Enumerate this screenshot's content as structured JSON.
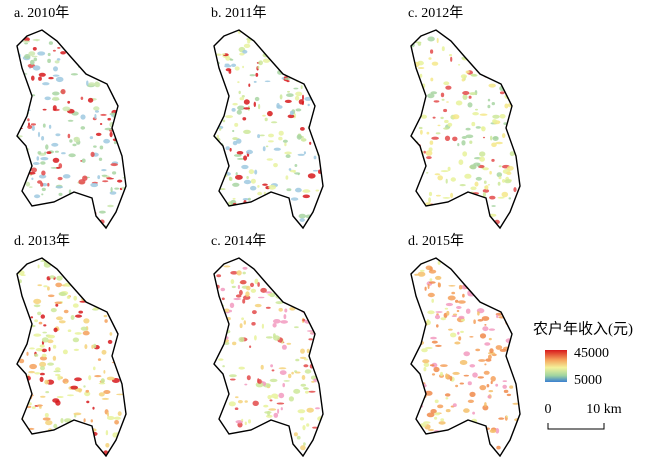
{
  "panels": [
    {
      "label": "a. 2010年"
    },
    {
      "label": "b. 2011年"
    },
    {
      "label": "c. 2012年"
    },
    {
      "label": "d. 2013年"
    },
    {
      "label": "c. 2014年"
    },
    {
      "label": "d. 2015年"
    }
  ],
  "legend": {
    "title": "农户年收入(元)",
    "max": 45000,
    "min": 5000
  },
  "scale_bar": {
    "start": 0,
    "end": "10 km"
  }
}
